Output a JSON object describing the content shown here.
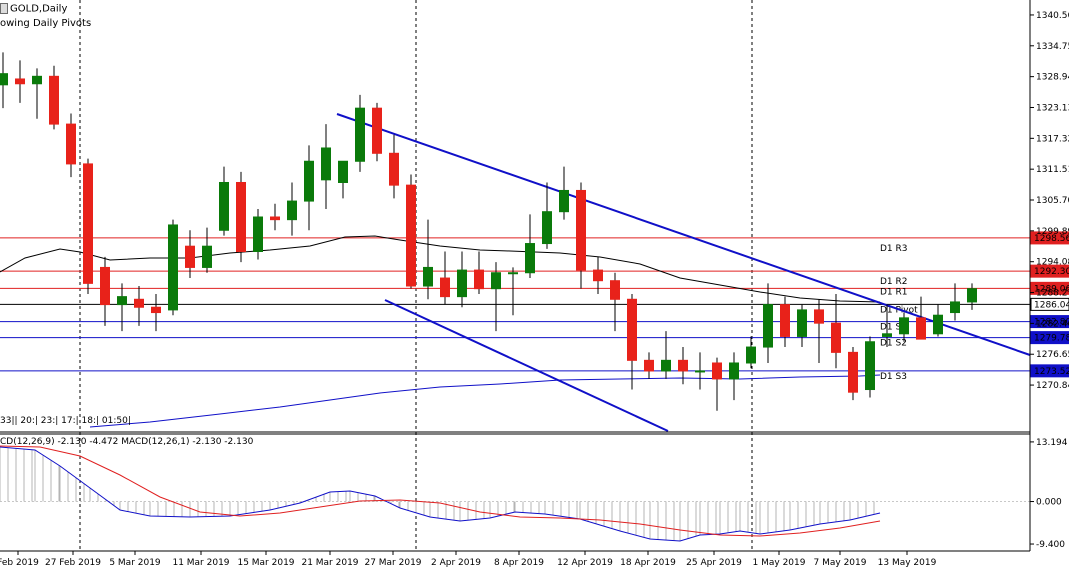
{
  "symbol_title": "GOLD,Daily",
  "indicator_title": "owing Daily Pivots",
  "timer_text": "33|| 20:| 23:| 17:| 18:| 01:50|",
  "macd_label": "CD(12,26,9) -2.130 -4.472 MACD(12,26,1) -2.130 -2.130",
  "colors": {
    "bull": "#0a7a0a",
    "bear": "#e8221a",
    "trendline": "#1010c8",
    "resistance": "#e02020",
    "support": "#1010c8",
    "pivot": "#000000",
    "ma_fast": "#000000",
    "ma_slow": "#1010c8",
    "macd_signal": "#e02020",
    "macd_line": "#1010c8",
    "price_bg": "#ffffff"
  },
  "chart_data": {
    "type": "candlestick",
    "price_axis": {
      "ticks": [
        "1340.56",
        "1334.75",
        "1328.94",
        "1323.13",
        "1317.32",
        "1311.51",
        "1305.70",
        "1299.89",
        "1294.08",
        "1288.27",
        "1282.46",
        "1276.65",
        "1270.84"
      ],
      "ylim": [
        1262,
        1343
      ]
    },
    "x_axis": {
      "labels": [
        "Feb 2019",
        "27 Feb 2019",
        "5 Mar 2019",
        "11 Mar 2019",
        "15 Mar 2019",
        "21 Mar 2019",
        "27 Mar 2019",
        "2 Apr 2019",
        "8 Apr 2019",
        "12 Apr 2019",
        "18 Apr 2019",
        "25 Apr 2019",
        "1 May 2019",
        "7 May 2019",
        "13 May 2019"
      ]
    },
    "pivots": [
      {
        "name": "D1 R3",
        "value": 1298.56,
        "price_label": "1298.56",
        "kind": "resistance"
      },
      {
        "name": "D1 R2",
        "value": 1292.3,
        "price_label": "1292.30",
        "kind": "resistance"
      },
      {
        "name": "D1 R1",
        "value": 1289.06,
        "price_label": "1289.06",
        "kind": "resistance"
      },
      {
        "name": "D1 Pivot",
        "value": 1286.04,
        "price_label": "1286.04",
        "kind": "pivot"
      },
      {
        "name": "D1 S1",
        "value": 1282.8,
        "price_label": "1282.80",
        "kind": "support"
      },
      {
        "name": "D1 S2",
        "value": 1279.78,
        "price_label": "1279.78",
        "kind": "support"
      },
      {
        "name": "D1 S3",
        "value": 1273.52,
        "price_label": "1273.52",
        "kind": "support"
      }
    ],
    "candles": [
      {
        "o": 1327.4,
        "h": 1333.5,
        "l": 1323.0,
        "c": 1329.5
      },
      {
        "o": 1328.5,
        "h": 1332.0,
        "l": 1324.0,
        "c": 1327.6
      },
      {
        "o": 1327.6,
        "h": 1330.5,
        "l": 1321.0,
        "c": 1329.0
      },
      {
        "o": 1329.0,
        "h": 1331.0,
        "l": 1319.0,
        "c": 1320.0
      },
      {
        "o": 1320.0,
        "h": 1322.0,
        "l": 1310.0,
        "c": 1312.5
      },
      {
        "o": 1312.5,
        "h": 1313.5,
        "l": 1288.0,
        "c": 1290.0
      },
      {
        "o": 1293.0,
        "h": 1295.0,
        "l": 1282.0,
        "c": 1286.0
      },
      {
        "o": 1286.0,
        "h": 1290.0,
        "l": 1281.0,
        "c": 1287.5
      },
      {
        "o": 1287.0,
        "h": 1289.5,
        "l": 1282.0,
        "c": 1285.5
      },
      {
        "o": 1285.5,
        "h": 1288.0,
        "l": 1281.0,
        "c": 1284.5
      },
      {
        "o": 1285.0,
        "h": 1302.0,
        "l": 1284.0,
        "c": 1301.0
      },
      {
        "o": 1297.0,
        "h": 1300.0,
        "l": 1291.0,
        "c": 1293.0
      },
      {
        "o": 1293.0,
        "h": 1300.5,
        "l": 1292.0,
        "c": 1297.0
      },
      {
        "o": 1300.0,
        "h": 1312.0,
        "l": 1299.0,
        "c": 1309.0
      },
      {
        "o": 1309.0,
        "h": 1311.0,
        "l": 1294.0,
        "c": 1296.0
      },
      {
        "o": 1296.0,
        "h": 1304.0,
        "l": 1294.5,
        "c": 1302.5
      },
      {
        "o": 1302.5,
        "h": 1305.0,
        "l": 1300.0,
        "c": 1302.0
      },
      {
        "o": 1302.0,
        "h": 1309.0,
        "l": 1299.0,
        "c": 1305.5
      },
      {
        "o": 1305.5,
        "h": 1316.0,
        "l": 1300.0,
        "c": 1313.0
      },
      {
        "o": 1309.5,
        "h": 1320.0,
        "l": 1304.0,
        "c": 1315.5
      },
      {
        "o": 1309.0,
        "h": 1313.0,
        "l": 1306.0,
        "c": 1313.0
      },
      {
        "o": 1313.0,
        "h": 1325.5,
        "l": 1311.0,
        "c": 1323.0
      },
      {
        "o": 1323.0,
        "h": 1324.0,
        "l": 1313.0,
        "c": 1314.5
      },
      {
        "o": 1314.5,
        "h": 1318.0,
        "l": 1306.0,
        "c": 1308.5
      },
      {
        "o": 1308.5,
        "h": 1310.5,
        "l": 1289.0,
        "c": 1289.5
      },
      {
        "o": 1289.5,
        "h": 1302.0,
        "l": 1287.0,
        "c": 1293.0
      },
      {
        "o": 1291.0,
        "h": 1296.0,
        "l": 1286.0,
        "c": 1287.5
      },
      {
        "o": 1287.5,
        "h": 1296.0,
        "l": 1285.5,
        "c": 1292.5
      },
      {
        "o": 1292.5,
        "h": 1296.0,
        "l": 1288.0,
        "c": 1289.0
      },
      {
        "o": 1289.0,
        "h": 1294.0,
        "l": 1281.0,
        "c": 1292.0
      },
      {
        "o": 1292.0,
        "h": 1293.0,
        "l": 1284.0,
        "c": 1292.0
      },
      {
        "o": 1292.0,
        "h": 1303.0,
        "l": 1291.0,
        "c": 1297.5
      },
      {
        "o": 1297.5,
        "h": 1309.0,
        "l": 1296.5,
        "c": 1303.5
      },
      {
        "o": 1303.5,
        "h": 1312.0,
        "l": 1302.0,
        "c": 1307.5
      },
      {
        "o": 1307.5,
        "h": 1309.0,
        "l": 1289.0,
        "c": 1292.5
      },
      {
        "o": 1292.5,
        "h": 1295.0,
        "l": 1288.0,
        "c": 1290.5
      },
      {
        "o": 1290.5,
        "h": 1292.0,
        "l": 1281.0,
        "c": 1287.0
      },
      {
        "o": 1287.0,
        "h": 1288.0,
        "l": 1270.0,
        "c": 1275.5
      },
      {
        "o": 1275.5,
        "h": 1277.0,
        "l": 1272.0,
        "c": 1273.5
      },
      {
        "o": 1273.5,
        "h": 1281.0,
        "l": 1272.0,
        "c": 1275.5
      },
      {
        "o": 1275.5,
        "h": 1278.0,
        "l": 1271.0,
        "c": 1273.5
      },
      {
        "o": 1273.5,
        "h": 1277.0,
        "l": 1270.0,
        "c": 1273.5
      },
      {
        "o": 1275.0,
        "h": 1276.0,
        "l": 1266.0,
        "c": 1272.0
      },
      {
        "o": 1272.0,
        "h": 1277.0,
        "l": 1268.0,
        "c": 1275.0
      },
      {
        "o": 1275.0,
        "h": 1280.0,
        "l": 1274.0,
        "c": 1278.0
      },
      {
        "o": 1278.0,
        "h": 1290.0,
        "l": 1275.0,
        "c": 1286.0
      },
      {
        "o": 1286.0,
        "h": 1287.5,
        "l": 1278.0,
        "c": 1280.0
      },
      {
        "o": 1280.0,
        "h": 1286.0,
        "l": 1278.0,
        "c": 1285.0
      },
      {
        "o": 1285.0,
        "h": 1287.0,
        "l": 1275.0,
        "c": 1282.5
      },
      {
        "o": 1282.5,
        "h": 1288.0,
        "l": 1274.0,
        "c": 1277.0
      },
      {
        "o": 1277.0,
        "h": 1278.0,
        "l": 1268.0,
        "c": 1269.5
      },
      {
        "o": 1270.0,
        "h": 1280.0,
        "l": 1268.5,
        "c": 1279.0
      },
      {
        "o": 1280.0,
        "h": 1286.0,
        "l": 1278.0,
        "c": 1280.5
      },
      {
        "o": 1280.5,
        "h": 1284.5,
        "l": 1279.0,
        "c": 1283.5
      },
      {
        "o": 1283.5,
        "h": 1287.5,
        "l": 1280.0,
        "c": 1279.5
      },
      {
        "o": 1280.5,
        "h": 1286.0,
        "l": 1280.0,
        "c": 1284.0
      },
      {
        "o": 1284.5,
        "h": 1290.0,
        "l": 1283.0,
        "c": 1286.5
      },
      {
        "o": 1286.5,
        "h": 1290.0,
        "l": 1285.0,
        "c": 1289.0
      }
    ],
    "macd": {
      "axis_ticks": [
        "13.194",
        "0.000",
        "-9.400"
      ],
      "ylim": [
        -10.5,
        14.5
      ]
    }
  }
}
